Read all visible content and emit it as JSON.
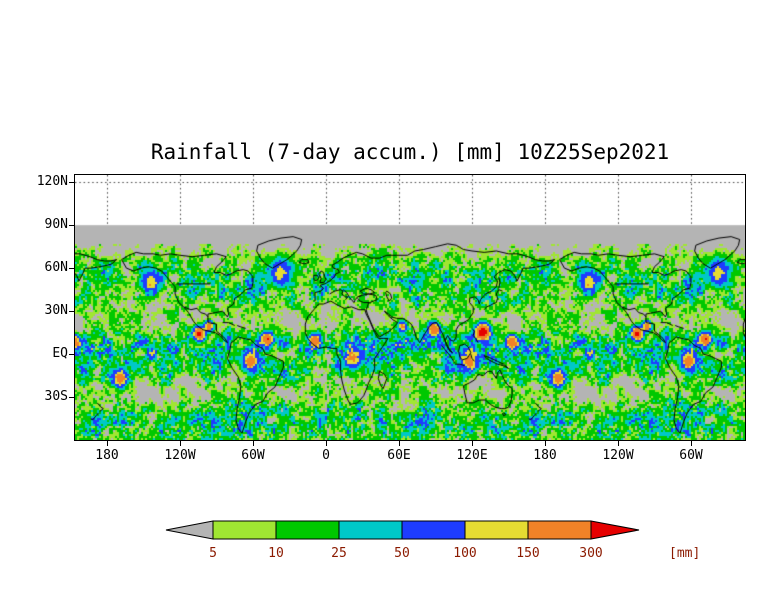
{
  "title": "Rainfall (7-day accum.) [mm] 10Z25Sep2021",
  "axes": {
    "y_ticks": [
      "120N",
      "90N",
      "60N",
      "30N",
      "EQ",
      "30S"
    ],
    "x_ticks": [
      "180",
      "120W",
      "60W",
      "0",
      "60E",
      "120E",
      "180",
      "120W",
      "60W"
    ]
  },
  "colorbar": {
    "levels": [
      "5",
      "10",
      "25",
      "50",
      "100",
      "150",
      "300"
    ],
    "unit_label": "[mm]",
    "label_color": "#8b1a00"
  },
  "map": {
    "background_color": "#b4b4b4",
    "coastline_color": "#000000"
  },
  "chart_data": {
    "type": "heatmap",
    "title": "Rainfall (7-day accum.) [mm] 10Z25Sep2021",
    "variable": "Rainfall, 7-day accumulation",
    "units": "mm",
    "valid_time": "10Z25Sep2021",
    "projection": "global cylindrical lat-lon; longitude axis repeats beyond 360 degrees (world shown ~1.5 times, from about 150E through Greenwich to about 60W of the second cycle)",
    "x_tick_labels": [
      "180",
      "120W",
      "60W",
      "0",
      "60E",
      "120E",
      "180",
      "120W",
      "60W"
    ],
    "y_tick_labels": [
      "120N",
      "90N",
      "60N",
      "30N",
      "EQ",
      "30S"
    ],
    "lat_axis_range_deg": [
      -60,
      125
    ],
    "data_coverage": "shaded rainfall field covers 90N to 60S; area above 90N is blank",
    "shading_levels_mm": [
      5,
      10,
      25,
      50,
      100,
      150,
      300
    ],
    "palette": [
      {
        "range": "< 5",
        "color": "#b4b4b4"
      },
      {
        "range": "5-10",
        "color": "#a0e632"
      },
      {
        "range": "10-25",
        "color": "#00c800"
      },
      {
        "range": "25-50",
        "color": "#00c8c8"
      },
      {
        "range": "50-100",
        "color": "#1e3cff"
      },
      {
        "range": "100-150",
        "color": "#e6dc32"
      },
      {
        "range": "150-300",
        "color": "#f08228"
      },
      {
        "range": "> 300",
        "color": "#e60000"
      }
    ],
    "legend_position": "bottom horizontal colorbar with underflow/overflow arrows",
    "grid": "dotted lat-lon gridlines visible in blank band above 90N",
    "notable_features": "heavy rain bands along ITCZ near equator, midlatitude storm tracks near 50N and 45-55S, intense (orange/red) cells near the western Pacific, Bay of Bengal, eastern Pacific off Mexico, and tropical Atlantic"
  }
}
